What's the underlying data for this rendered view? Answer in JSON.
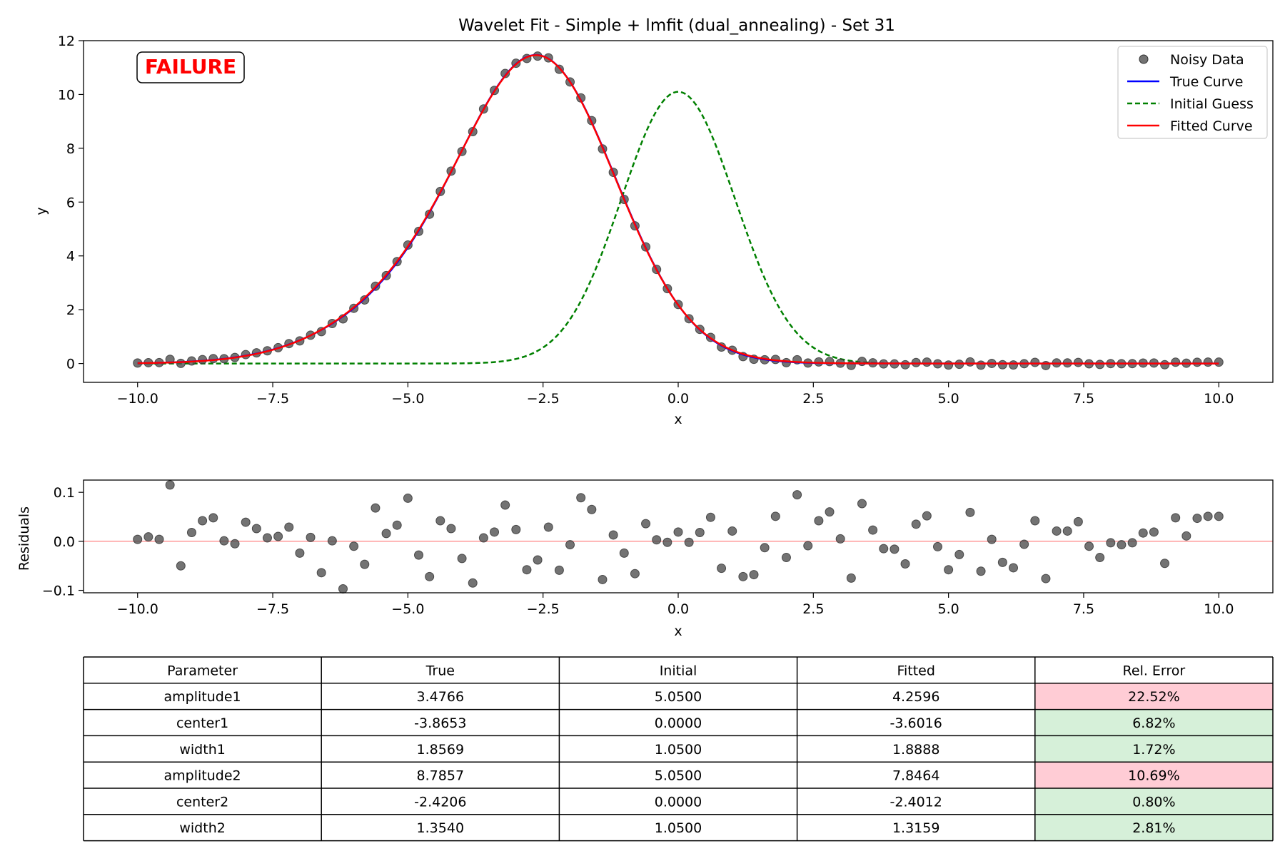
{
  "chart_data": [
    {
      "type": "line",
      "title": "Wavelet Fit - Simple + lmfit (dual_annealing) - Set 31",
      "xlabel": "x",
      "ylabel": "y",
      "xlim": [
        -11,
        11
      ],
      "ylim": [
        -0.7,
        12
      ],
      "xticks": [
        -10,
        -7.5,
        -5,
        -2.5,
        0,
        2.5,
        5,
        7.5,
        10
      ],
      "xtick_labels": [
        "−10.0",
        "−7.5",
        "−5.0",
        "−2.5",
        "0.0",
        "2.5",
        "5.0",
        "7.5",
        "10.0"
      ],
      "yticks": [
        0,
        2,
        4,
        6,
        8,
        10,
        12
      ],
      "ytick_labels": [
        "0",
        "2",
        "4",
        "6",
        "8",
        "10",
        "12"
      ],
      "grid": false,
      "legend": {
        "placement": "top-right"
      },
      "status_badge": "FAILURE",
      "x_grid": {
        "start": -10,
        "stop": 10,
        "count": 101
      },
      "series": [
        {
          "name": "Noisy Data",
          "style": "scatter",
          "color": "#505050",
          "model": "sum-of-gaussians",
          "params": {
            "amplitude1": 3.4766,
            "center1": -3.8653,
            "width1": 1.8569,
            "amplitude2": 8.7857,
            "center2": -2.4206,
            "width2": 1.354
          }
        },
        {
          "name": "True Curve",
          "style": "line",
          "color": "#0000ff",
          "model": "sum-of-gaussians",
          "params": {
            "amplitude1": 3.4766,
            "center1": -3.8653,
            "width1": 1.8569,
            "amplitude2": 8.7857,
            "center2": -2.4206,
            "width2": 1.354
          }
        },
        {
          "name": "Initial Guess",
          "style": "dashed",
          "color": "#008000",
          "model": "sum-of-gaussians",
          "params": {
            "amplitude1": 5.05,
            "center1": 0.0,
            "width1": 1.05,
            "amplitude2": 5.05,
            "center2": 0.0,
            "width2": 1.05
          }
        },
        {
          "name": "Fitted Curve",
          "style": "line",
          "color": "#ff0000",
          "model": "sum-of-gaussians",
          "params": {
            "amplitude1": 4.2596,
            "center1": -3.6016,
            "width1": 1.8888,
            "amplitude2": 7.8464,
            "center2": -2.4012,
            "width2": 1.3159
          }
        }
      ]
    },
    {
      "type": "scatter",
      "title": "",
      "xlabel": "x",
      "ylabel": "Residuals",
      "xlim": [
        -11,
        11
      ],
      "ylim": [
        -0.105,
        0.125
      ],
      "xticks": [
        -10,
        -7.5,
        -5,
        -2.5,
        0,
        2.5,
        5,
        7.5,
        10
      ],
      "xtick_labels": [
        "−10.0",
        "−7.5",
        "−5.0",
        "−2.5",
        "0.0",
        "2.5",
        "5.0",
        "7.5",
        "10.0"
      ],
      "yticks": [
        -0.1,
        0,
        0.1
      ],
      "ytick_labels": [
        "−0.1",
        "0.0",
        "0.1"
      ],
      "reference_line": {
        "y": 0,
        "color": "#ffb3b3"
      },
      "point_color": "#505050",
      "x_grid": {
        "start": -10,
        "stop": 10,
        "count": 101
      },
      "residuals": [
        0.004,
        0.009,
        0.004,
        0.115,
        -0.05,
        0.018,
        0.042,
        0.048,
        0.001,
        -0.005,
        0.039,
        0.026,
        0.007,
        0.01,
        0.029,
        -0.024,
        0.008,
        -0.064,
        0.001,
        -0.097,
        -0.01,
        -0.047,
        0.068,
        0.016,
        0.033,
        0.088,
        -0.028,
        -0.072,
        0.042,
        0.026,
        -0.035,
        -0.085,
        0.007,
        0.019,
        0.074,
        0.024,
        -0.058,
        -0.038,
        0.029,
        -0.059,
        -0.007,
        0.089,
        0.065,
        -0.078,
        0.013,
        -0.024,
        -0.066,
        0.036,
        0.003,
        -0.002,
        0.019,
        -0.002,
        0.018,
        0.049,
        -0.055,
        0.021,
        -0.072,
        -0.068,
        -0.013,
        0.051,
        -0.033,
        0.095,
        -0.009,
        0.042,
        0.06,
        0.005,
        -0.075,
        0.077,
        0.023,
        -0.015,
        -0.016,
        -0.046,
        0.035,
        0.052,
        -0.011,
        -0.058,
        -0.027,
        0.059,
        -0.061,
        0.004,
        -0.043,
        -0.054,
        -0.006,
        0.042,
        -0.076,
        0.021,
        0.021,
        0.04,
        -0.01,
        -0.033,
        -0.003,
        -0.007,
        -0.003,
        0.017,
        0.019,
        -0.045,
        0.048,
        0.011,
        0.047,
        0.051,
        0.051
      ]
    },
    {
      "type": "table",
      "columns": [
        "Parameter",
        "True",
        "Initial",
        "Fitted",
        "Rel. Error"
      ],
      "rows": [
        {
          "cells": [
            "amplitude1",
            "3.4766",
            "5.0500",
            "4.2596",
            "22.52%"
          ],
          "error_color": "#ffccd5"
        },
        {
          "cells": [
            "center1",
            "-3.8653",
            "0.0000",
            "-3.6016",
            "6.82%"
          ],
          "error_color": "#d6f0d9"
        },
        {
          "cells": [
            "width1",
            "1.8569",
            "1.0500",
            "1.8888",
            "1.72%"
          ],
          "error_color": "#d6f0d9"
        },
        {
          "cells": [
            "amplitude2",
            "8.7857",
            "5.0500",
            "7.8464",
            "10.69%"
          ],
          "error_color": "#ffccd5"
        },
        {
          "cells": [
            "center2",
            "-2.4206",
            "0.0000",
            "-2.4012",
            "0.80%"
          ],
          "error_color": "#d6f0d9"
        },
        {
          "cells": [
            "width2",
            "1.3540",
            "1.0500",
            "1.3159",
            "2.81%"
          ],
          "error_color": "#d6f0d9"
        }
      ]
    }
  ]
}
